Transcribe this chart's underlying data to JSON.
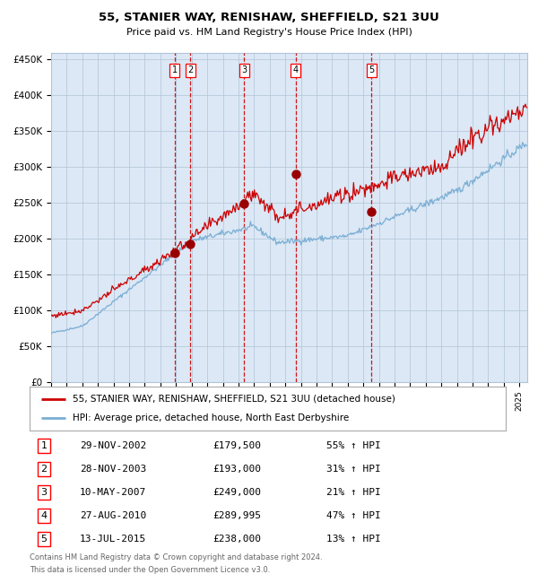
{
  "title": "55, STANIER WAY, RENISHAW, SHEFFIELD, S21 3UU",
  "subtitle": "Price paid vs. HM Land Registry's House Price Index (HPI)",
  "legend_line1": "55, STANIER WAY, RENISHAW, SHEFFIELD, S21 3UU (detached house)",
  "legend_line2": "HPI: Average price, detached house, North East Derbyshire",
  "footer_line1": "Contains HM Land Registry data © Crown copyright and database right 2024.",
  "footer_line2": "This data is licensed under the Open Government Licence v3.0.",
  "hpi_color": "#7aaed4",
  "price_color": "#cc0000",
  "sale_marker_color": "#990000",
  "vline_color": "#cc0000",
  "vspan_color": "#dce8f5",
  "background_color": "#ffffff",
  "grid_color": "#b0c4d8",
  "ylim": [
    0,
    460000
  ],
  "yticks": [
    0,
    50000,
    100000,
    150000,
    200000,
    250000,
    300000,
    350000,
    400000,
    450000
  ],
  "sales": [
    {
      "num": 1,
      "date_year": 2002.91,
      "price": 179500,
      "label": "29-NOV-2002",
      "pct": "55%",
      "dir": "↑"
    },
    {
      "num": 2,
      "date_year": 2003.91,
      "price": 193000,
      "label": "28-NOV-2003",
      "pct": "31%",
      "dir": "↑"
    },
    {
      "num": 3,
      "date_year": 2007.36,
      "price": 249000,
      "label": "10-MAY-2007",
      "pct": "21%",
      "dir": "↑"
    },
    {
      "num": 4,
      "date_year": 2010.66,
      "price": 289995,
      "label": "27-AUG-2010",
      "pct": "47%",
      "dir": "↑"
    },
    {
      "num": 5,
      "date_year": 2015.53,
      "price": 238000,
      "label": "13-JUL-2015",
      "pct": "13%",
      "dir": "↑"
    }
  ],
  "xmin": 1995.0,
  "xmax": 2025.5
}
